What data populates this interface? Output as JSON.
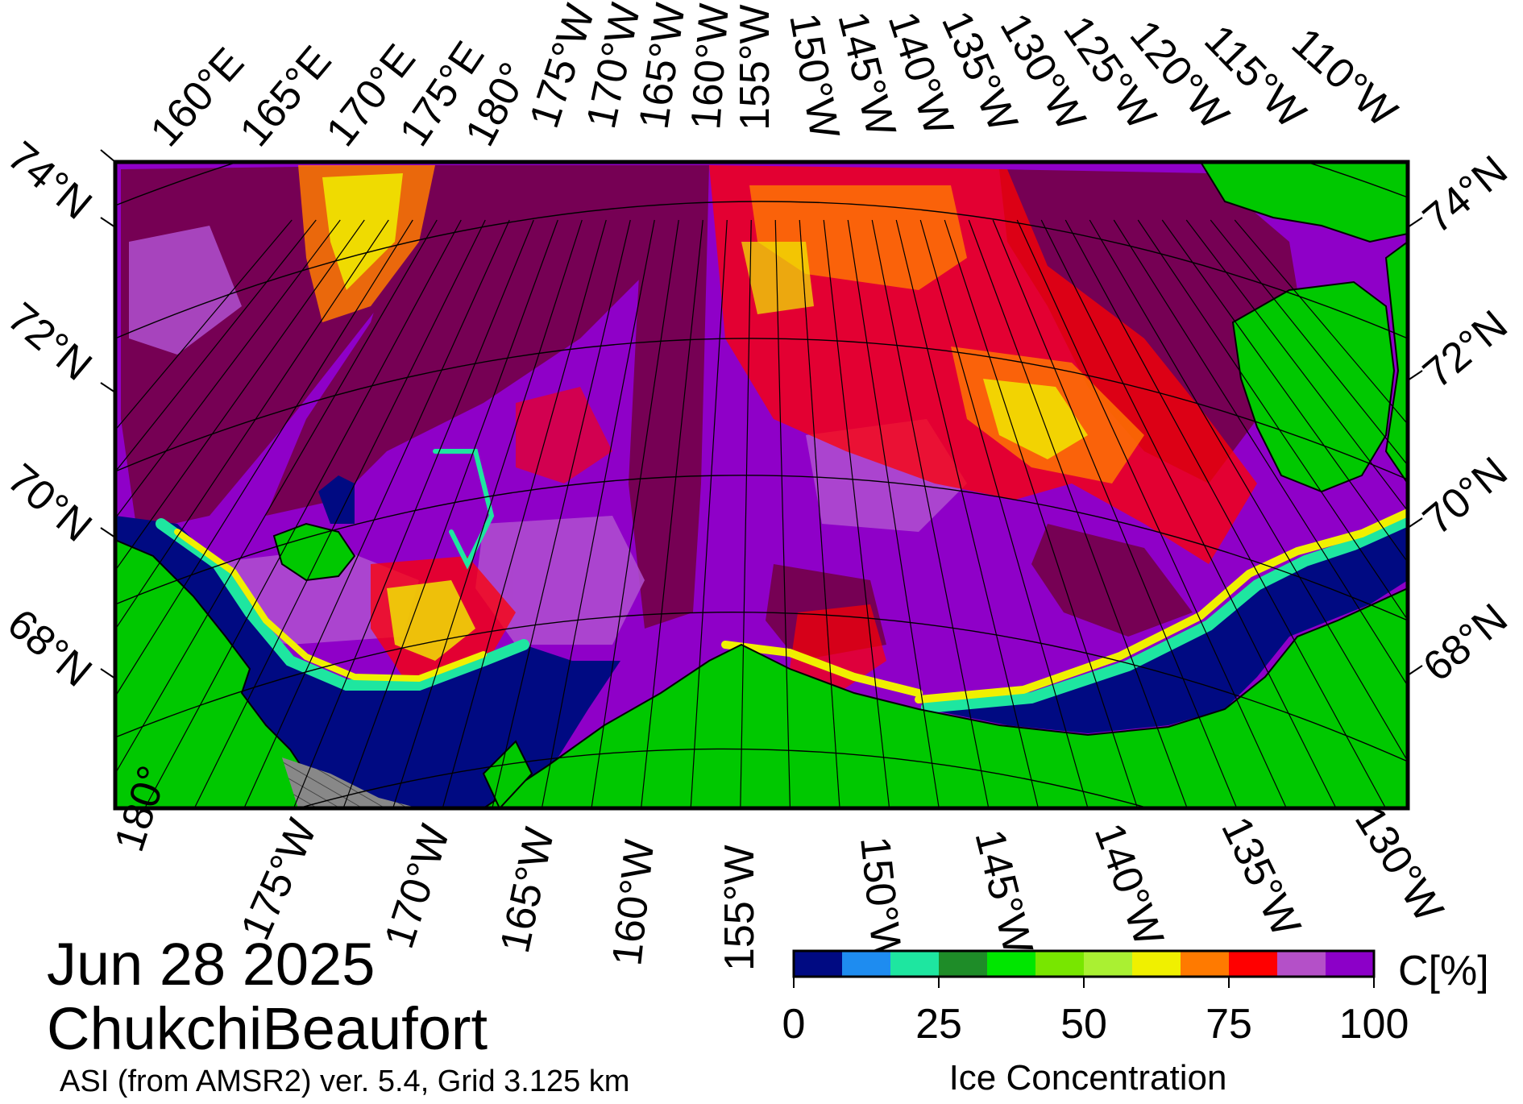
{
  "map": {
    "date": "Jun 28 2025",
    "region": "ChukchiBeaufort",
    "product": "ASI (from AMSR2) ver. 5.4,  Grid 3.125 km",
    "colors": {
      "ocean_low": "#000a82",
      "land": "#00c800",
      "nodata": "#888888",
      "ice_dark": "#760054",
      "ice_mid": "#8f00c8",
      "ice_light": "#b050d0",
      "ice_red": "#ff0000",
      "ice_orange": "#ff7a00",
      "ice_yellow": "#f0f000"
    },
    "top_lon_labels": [
      "160°E",
      "165°E",
      "170°E",
      "175°E",
      "180°",
      "175°W",
      "170°W",
      "165°W",
      "160°W",
      "155°W",
      "150°W",
      "145°W",
      "140°W",
      "135°W",
      "130°W",
      "125°W",
      "120°W",
      "115°W",
      "110°W"
    ],
    "bottom_lon_labels": [
      "180°",
      "175°W",
      "170°W",
      "165°W",
      "160°W",
      "155°W",
      "150°W",
      "145°W",
      "140°W",
      "135°W",
      "130°W"
    ],
    "left_lat_labels": [
      "74°N",
      "72°N",
      "70°N",
      "68°N"
    ],
    "right_lat_labels": [
      "74°N",
      "72°N",
      "70°N",
      "68°N"
    ]
  },
  "colorbar": {
    "colors": [
      "#000a82",
      "#1e8cf0",
      "#1ee6a0",
      "#1e8c28",
      "#00e600",
      "#78e600",
      "#aaf032",
      "#f0f000",
      "#ff7a00",
      "#ff0000",
      "#b450c8",
      "#8c00c8"
    ],
    "ticks": [
      "0",
      "25",
      "50",
      "75",
      "100"
    ],
    "unit": "C[%]",
    "title": "Ice Concentration"
  }
}
